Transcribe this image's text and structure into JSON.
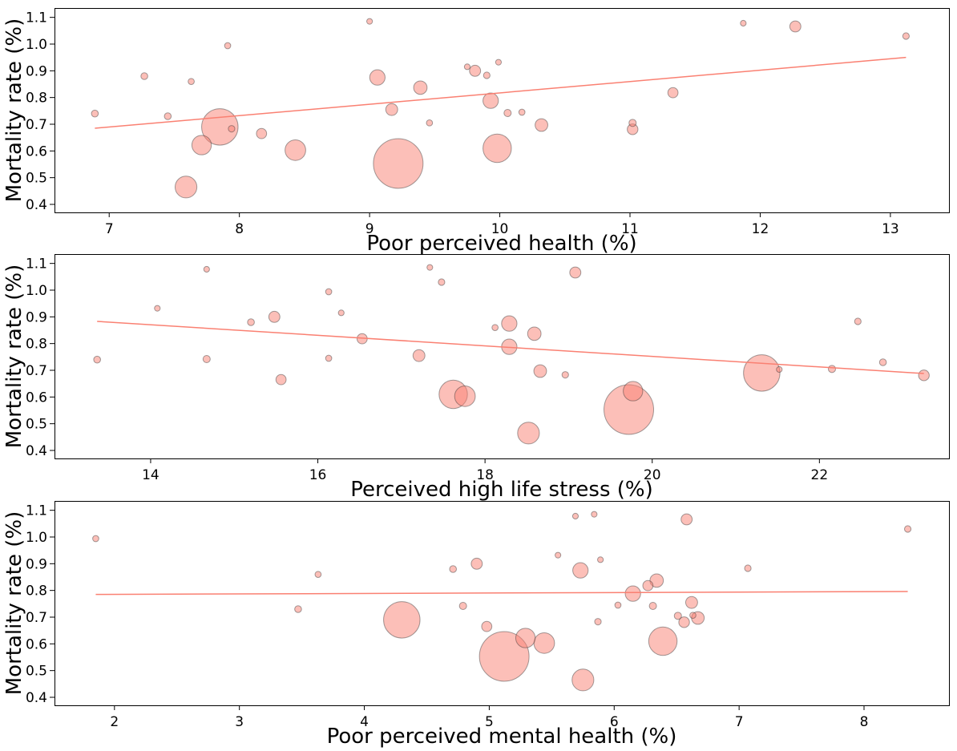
{
  "colors": {
    "bubble_fill": "#fa8072",
    "bubble_opacity": 0.5,
    "fit_line": "#fa8072"
  },
  "chart_data": [
    {
      "type": "scatter",
      "title": "",
      "xlabel": "Poor perceived health (%)",
      "ylabel": "Mortality rate (%)",
      "xlim": [
        6.58,
        13.45
      ],
      "ylim": [
        0.37,
        1.135
      ],
      "xticks": [
        7,
        8,
        9,
        10,
        11,
        12,
        13
      ],
      "yticks": [
        0.4,
        0.5,
        0.6,
        0.7,
        0.8,
        0.9,
        1.0,
        1.1
      ],
      "grid": false,
      "legend": "none",
      "fit": {
        "x": [
          6.89,
          13.12
        ],
        "y": [
          0.685,
          0.95
        ]
      },
      "points": [
        {
          "x": 6.89,
          "y": 0.74,
          "size": 1
        },
        {
          "x": 7.27,
          "y": 0.88,
          "size": 1
        },
        {
          "x": 7.45,
          "y": 0.73,
          "size": 1
        },
        {
          "x": 7.59,
          "y": 0.465,
          "size": 10
        },
        {
          "x": 7.63,
          "y": 0.86,
          "size": 0.8
        },
        {
          "x": 7.71,
          "y": 0.622,
          "size": 8
        },
        {
          "x": 7.85,
          "y": 0.69,
          "size": 28
        },
        {
          "x": 7.91,
          "y": 0.994,
          "size": 0.8
        },
        {
          "x": 7.94,
          "y": 0.683,
          "size": 0.9
        },
        {
          "x": 8.17,
          "y": 0.665,
          "size": 2.2
        },
        {
          "x": 8.43,
          "y": 0.603,
          "size": 9
        },
        {
          "x": 9.0,
          "y": 1.085,
          "size": 0.7
        },
        {
          "x": 9.06,
          "y": 0.875,
          "size": 5
        },
        {
          "x": 9.17,
          "y": 0.755,
          "size": 3
        },
        {
          "x": 9.22,
          "y": 0.553,
          "size": 52
        },
        {
          "x": 9.39,
          "y": 0.837,
          "size": 3.8
        },
        {
          "x": 9.46,
          "y": 0.705,
          "size": 0.8
        },
        {
          "x": 9.75,
          "y": 0.915,
          "size": 0.7
        },
        {
          "x": 9.81,
          "y": 0.9,
          "size": 2.6
        },
        {
          "x": 9.9,
          "y": 0.883,
          "size": 0.9
        },
        {
          "x": 9.93,
          "y": 0.788,
          "size": 5
        },
        {
          "x": 9.98,
          "y": 0.61,
          "size": 17
        },
        {
          "x": 9.99,
          "y": 0.932,
          "size": 0.7
        },
        {
          "x": 10.06,
          "y": 0.742,
          "size": 1.1
        },
        {
          "x": 10.17,
          "y": 0.745,
          "size": 0.8
        },
        {
          "x": 10.32,
          "y": 0.697,
          "size": 3.4
        },
        {
          "x": 11.02,
          "y": 0.705,
          "size": 1.1
        },
        {
          "x": 11.02,
          "y": 0.681,
          "size": 2.4
        },
        {
          "x": 11.33,
          "y": 0.818,
          "size": 2.2
        },
        {
          "x": 11.87,
          "y": 1.078,
          "size": 0.7
        },
        {
          "x": 12.27,
          "y": 1.066,
          "size": 2.6
        },
        {
          "x": 13.12,
          "y": 1.03,
          "size": 0.9
        }
      ]
    },
    {
      "type": "scatter",
      "title": "",
      "xlabel": "Perceived high life stress (%)",
      "ylabel": "Mortality rate (%)",
      "xlim": [
        12.85,
        23.55
      ],
      "ylim": [
        0.37,
        1.135
      ],
      "xticks": [
        14,
        16,
        18,
        20,
        22
      ],
      "yticks": [
        0.4,
        0.5,
        0.6,
        0.7,
        0.8,
        0.9,
        1.0,
        1.1
      ],
      "grid": false,
      "legend": "none",
      "fit": {
        "x": [
          13.36,
          23.25
        ],
        "y": [
          0.883,
          0.688
        ]
      },
      "points": [
        {
          "x": 13.36,
          "y": 0.74,
          "size": 1
        },
        {
          "x": 14.08,
          "y": 0.932,
          "size": 0.7
        },
        {
          "x": 14.67,
          "y": 1.078,
          "size": 0.7
        },
        {
          "x": 14.67,
          "y": 0.742,
          "size": 1.1
        },
        {
          "x": 15.2,
          "y": 0.88,
          "size": 1
        },
        {
          "x": 15.48,
          "y": 0.9,
          "size": 2.6
        },
        {
          "x": 15.56,
          "y": 0.665,
          "size": 2.2
        },
        {
          "x": 16.13,
          "y": 0.994,
          "size": 0.8
        },
        {
          "x": 16.13,
          "y": 0.745,
          "size": 0.8
        },
        {
          "x": 16.28,
          "y": 0.915,
          "size": 0.7
        },
        {
          "x": 16.53,
          "y": 0.818,
          "size": 2.2
        },
        {
          "x": 17.21,
          "y": 0.755,
          "size": 3
        },
        {
          "x": 17.34,
          "y": 1.085,
          "size": 0.7
        },
        {
          "x": 17.48,
          "y": 1.03,
          "size": 0.9
        },
        {
          "x": 17.62,
          "y": 0.61,
          "size": 17
        },
        {
          "x": 17.76,
          "y": 0.603,
          "size": 9
        },
        {
          "x": 18.12,
          "y": 0.86,
          "size": 0.8
        },
        {
          "x": 18.29,
          "y": 0.875,
          "size": 5
        },
        {
          "x": 18.29,
          "y": 0.788,
          "size": 5
        },
        {
          "x": 18.52,
          "y": 0.465,
          "size": 10
        },
        {
          "x": 18.59,
          "y": 0.837,
          "size": 3.8
        },
        {
          "x": 18.66,
          "y": 0.697,
          "size": 3.4
        },
        {
          "x": 18.96,
          "y": 0.683,
          "size": 0.9
        },
        {
          "x": 19.08,
          "y": 1.066,
          "size": 2.6
        },
        {
          "x": 19.72,
          "y": 0.553,
          "size": 52
        },
        {
          "x": 19.77,
          "y": 0.622,
          "size": 8
        },
        {
          "x": 21.31,
          "y": 0.69,
          "size": 28
        },
        {
          "x": 21.52,
          "y": 0.703,
          "size": 0.7
        },
        {
          "x": 22.15,
          "y": 0.705,
          "size": 1.1
        },
        {
          "x": 22.46,
          "y": 0.883,
          "size": 0.9
        },
        {
          "x": 22.76,
          "y": 0.73,
          "size": 1
        },
        {
          "x": 23.25,
          "y": 0.681,
          "size": 2.4
        }
      ]
    },
    {
      "type": "scatter",
      "title": "",
      "xlabel": "Poor perceived mental health (%)",
      "ylabel": "Mortality rate (%)",
      "xlim": [
        1.52,
        8.68
      ],
      "ylim": [
        0.37,
        1.135
      ],
      "xticks": [
        2,
        3,
        4,
        5,
        6,
        7,
        8
      ],
      "yticks": [
        0.4,
        0.5,
        0.6,
        0.7,
        0.8,
        0.9,
        1.0,
        1.1
      ],
      "grid": false,
      "legend": "none",
      "fit": {
        "x": [
          1.85,
          8.35
        ],
        "y": [
          0.785,
          0.796
        ]
      },
      "points": [
        {
          "x": 1.85,
          "y": 0.994,
          "size": 0.8
        },
        {
          "x": 3.47,
          "y": 0.73,
          "size": 1
        },
        {
          "x": 3.63,
          "y": 0.86,
          "size": 0.8
        },
        {
          "x": 4.3,
          "y": 0.69,
          "size": 28
        },
        {
          "x": 4.71,
          "y": 0.88,
          "size": 1
        },
        {
          "x": 4.79,
          "y": 0.742,
          "size": 1.1
        },
        {
          "x": 4.9,
          "y": 0.9,
          "size": 2.6
        },
        {
          "x": 4.98,
          "y": 0.665,
          "size": 2.2
        },
        {
          "x": 5.12,
          "y": 0.553,
          "size": 52
        },
        {
          "x": 5.29,
          "y": 0.622,
          "size": 8
        },
        {
          "x": 5.44,
          "y": 0.603,
          "size": 9
        },
        {
          "x": 5.55,
          "y": 0.932,
          "size": 0.7
        },
        {
          "x": 5.69,
          "y": 1.078,
          "size": 0.7
        },
        {
          "x": 5.73,
          "y": 0.875,
          "size": 5
        },
        {
          "x": 5.75,
          "y": 0.465,
          "size": 10
        },
        {
          "x": 5.84,
          "y": 1.085,
          "size": 0.7
        },
        {
          "x": 5.87,
          "y": 0.683,
          "size": 0.9
        },
        {
          "x": 5.89,
          "y": 0.915,
          "size": 0.7
        },
        {
          "x": 6.03,
          "y": 0.745,
          "size": 0.8
        },
        {
          "x": 6.15,
          "y": 0.788,
          "size": 5
        },
        {
          "x": 6.27,
          "y": 0.818,
          "size": 2.2
        },
        {
          "x": 6.31,
          "y": 0.742,
          "size": 1.1
        },
        {
          "x": 6.34,
          "y": 0.837,
          "size": 3.8
        },
        {
          "x": 6.39,
          "y": 0.61,
          "size": 17
        },
        {
          "x": 6.51,
          "y": 0.705,
          "size": 1.1
        },
        {
          "x": 6.56,
          "y": 0.681,
          "size": 2.4
        },
        {
          "x": 6.58,
          "y": 1.066,
          "size": 2.6
        },
        {
          "x": 6.62,
          "y": 0.755,
          "size": 3
        },
        {
          "x": 6.63,
          "y": 0.707,
          "size": 0.8
        },
        {
          "x": 6.67,
          "y": 0.697,
          "size": 3.4
        },
        {
          "x": 7.07,
          "y": 0.883,
          "size": 0.9
        },
        {
          "x": 8.35,
          "y": 1.03,
          "size": 0.9
        }
      ]
    }
  ]
}
